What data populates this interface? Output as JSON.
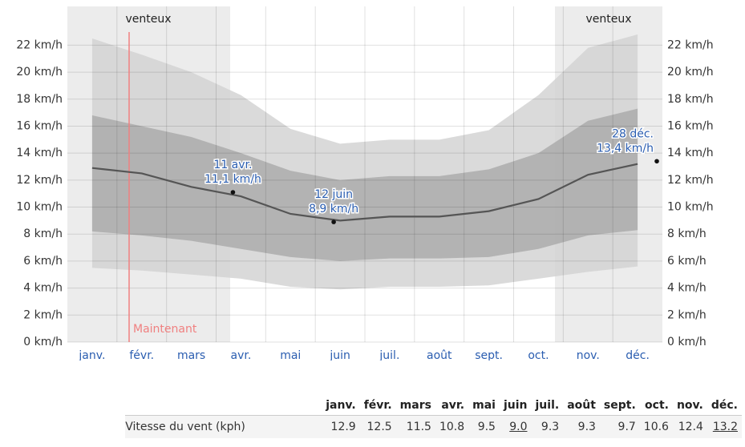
{
  "chart_data": {
    "type": "band-line",
    "categories": [
      "janv.",
      "févr.",
      "mars",
      "avr.",
      "mai",
      "juin",
      "juil.",
      "août",
      "sept.",
      "oct.",
      "nov.",
      "déc."
    ],
    "ylim": [
      0,
      22.5
    ],
    "yticks": [
      {
        "value": 0,
        "label": "0 km/h"
      },
      {
        "value": 2,
        "label": "2 km/h"
      },
      {
        "value": 4,
        "label": "4 km/h"
      },
      {
        "value": 6,
        "label": "6 km/h"
      },
      {
        "value": 8,
        "label": "8 km/h"
      },
      {
        "value": 10,
        "label": "10 km/h"
      },
      {
        "value": 12,
        "label": "12 km/h"
      },
      {
        "value": 14,
        "label": "14 km/h"
      },
      {
        "value": 16,
        "label": "16 km/h"
      },
      {
        "value": 18,
        "label": "18 km/h"
      },
      {
        "value": 20,
        "label": "20 km/h"
      },
      {
        "value": 22,
        "label": "22 km/h"
      }
    ],
    "grid": true,
    "bands": [
      {
        "color": "#d4d4d4",
        "upper": [
          22.5,
          21.3,
          20.0,
          18.3,
          15.8,
          14.7,
          15.0,
          15.0,
          15.7,
          18.3,
          21.8,
          22.8
        ],
        "lower": [
          5.5,
          5.3,
          5.0,
          4.7,
          4.1,
          3.9,
          4.1,
          4.1,
          4.2,
          4.7,
          5.2,
          5.6
        ]
      },
      {
        "color": "#ababab",
        "upper": [
          16.8,
          16.0,
          15.2,
          14.0,
          12.7,
          12.0,
          12.3,
          12.3,
          12.8,
          14.0,
          16.4,
          17.3
        ],
        "lower": [
          8.2,
          7.9,
          7.5,
          6.9,
          6.3,
          6.0,
          6.2,
          6.2,
          6.3,
          6.9,
          7.9,
          8.3
        ]
      }
    ],
    "line": {
      "color": "#555555",
      "values": [
        12.9,
        12.5,
        11.5,
        10.8,
        9.5,
        9.0,
        9.3,
        9.3,
        9.7,
        10.6,
        12.4,
        13.2
      ]
    },
    "season_label": "venteux",
    "now_label": "Maintenant",
    "annotations": [
      {
        "date": "11 avr.",
        "value": 11.1,
        "value_label": "11,1 km/h"
      },
      {
        "date": "12 juin",
        "value": 8.9,
        "value_label": "8,9 km/h"
      },
      {
        "date": "28 déc.",
        "value": 13.4,
        "value_label": "13,4 km/h"
      }
    ]
  },
  "table": {
    "columns": [
      "janv.",
      "févr.",
      "mars",
      "avr.",
      "mai",
      "juin",
      "juil.",
      "août",
      "sept.",
      "oct.",
      "nov.",
      "déc."
    ],
    "row_label": "Vitesse du vent (kph)",
    "values": [
      "12.9",
      "12.5",
      "11.5",
      "10.8",
      "9.5",
      "9.0",
      "9.3",
      "9.3",
      "9.7",
      "10.6",
      "12.4",
      "13.2"
    ],
    "underlined": [
      5,
      11
    ]
  }
}
